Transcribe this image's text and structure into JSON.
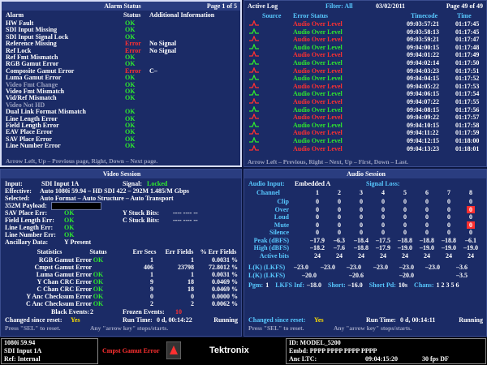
{
  "alarm": {
    "title": "Alarm Status",
    "page": "Page 1 of 5",
    "headers": [
      "Alarm",
      "Status",
      "Additional Information"
    ],
    "rows": [
      {
        "name": "HW Fault",
        "status": "OK",
        "color": "#2ee82e"
      },
      {
        "name": "SDI Input Missing",
        "status": "OK",
        "color": "#2ee82e"
      },
      {
        "name": "SDI Input Signal Lock",
        "status": "OK",
        "color": "#2ee82e"
      },
      {
        "name": "Reference Missing",
        "status": "Error",
        "color": "#ff3030",
        "info": "No Signal"
      },
      {
        "name": "Ref Lock",
        "status": "Error",
        "color": "#ff3030",
        "info": "No Signal"
      },
      {
        "name": "Ref Fmt Mismatch",
        "status": "OK",
        "color": "#2ee82e"
      },
      {
        "name": "RGB Gamut Error",
        "status": "OK",
        "color": "#2ee82e"
      },
      {
        "name": "Composite Gamut Error",
        "status": "Error",
        "color": "#ff3030",
        "info": "C–"
      },
      {
        "name": "Luma Gamut Error",
        "status": "OK",
        "color": "#2ee82e"
      },
      {
        "name": "Video Fmt Change",
        "status": "OK",
        "color": "#2ee82e",
        "dim": true
      },
      {
        "name": "Video Fmt Mismatch",
        "status": "OK",
        "color": "#2ee82e"
      },
      {
        "name": "Vid/Ref Mismatch",
        "status": "OK",
        "color": "#2ee82e"
      },
      {
        "name": "Video Not HD",
        "dim": true
      },
      {
        "name": "Dual Link Format Mismatch",
        "status": "OK",
        "color": "#2ee82e"
      },
      {
        "name": "Line Length Error",
        "status": "OK",
        "color": "#2ee82e"
      },
      {
        "name": "Field Length Error",
        "status": "OK",
        "color": "#2ee82e"
      },
      {
        "name": "EAV Place Error",
        "status": "OK",
        "color": "#2ee82e"
      },
      {
        "name": "SAV Place Error",
        "status": "OK",
        "color": "#2ee82e"
      },
      {
        "name": "Line Number Error",
        "status": "OK",
        "color": "#2ee82e"
      }
    ],
    "footer": "Arrow Left, Up – Previous page, Right, Down – Next page."
  },
  "log": {
    "title": "Active Log",
    "filter": "Filter: All",
    "date": "03/02/2011",
    "page": "Page 49 of 49",
    "headers": [
      "Source",
      "Error Status",
      "Timecode",
      "Time"
    ],
    "rows": [
      {
        "status": "Audio Over Level",
        "timecode": "09:03:57:21",
        "time": "01:17:45",
        "color": "#ff3030"
      },
      {
        "status": "Audio Over Level",
        "timecode": "09:03:58:13",
        "time": "01:17:45",
        "color": "#2ee82e"
      },
      {
        "status": "Audio Over Level",
        "timecode": "09:03:59:21",
        "time": "01:17:47",
        "color": "#ff3030"
      },
      {
        "status": "Audio Over Level",
        "timecode": "09:04:00:15",
        "time": "01:17:48",
        "color": "#2ee82e"
      },
      {
        "status": "Audio Over Level",
        "timecode": "09:04:01:22",
        "time": "01:17:49",
        "color": "#ff3030"
      },
      {
        "status": "Audio Over Level",
        "timecode": "09:04:02:14",
        "time": "01:17:50",
        "color": "#2ee82e"
      },
      {
        "status": "Audio Over Level",
        "timecode": "09:04:03:23",
        "time": "01:17:51",
        "color": "#ff3030"
      },
      {
        "status": "Audio Over Level",
        "timecode": "09:04:04:15",
        "time": "01:17:52",
        "color": "#2ee82e"
      },
      {
        "status": "Audio Over Level",
        "timecode": "09:04:05:22",
        "time": "01:17:53",
        "color": "#ff3030"
      },
      {
        "status": "Audio Over Level",
        "timecode": "09:04:06:15",
        "time": "01:17:54",
        "color": "#2ee82e"
      },
      {
        "status": "Audio Over Level",
        "timecode": "09:04:07:22",
        "time": "01:17:55",
        "color": "#ff3030"
      },
      {
        "status": "Audio Over Level",
        "timecode": "09:04:08:15",
        "time": "01:17:56",
        "color": "#2ee82e"
      },
      {
        "status": "Audio Over Level",
        "timecode": "09:04:09:22",
        "time": "01:17:57",
        "color": "#ff3030"
      },
      {
        "status": "Audio Over Level",
        "timecode": "09:04:10:15",
        "time": "01:17:58",
        "color": "#2ee82e"
      },
      {
        "status": "Audio Over Level",
        "timecode": "09:04:11:22",
        "time": "01:17:59",
        "color": "#ff3030"
      },
      {
        "status": "Audio Over Level",
        "timecode": "09:04:12:15",
        "time": "01:18:00",
        "color": "#2ee82e"
      },
      {
        "status": "Audio Over Level",
        "timecode": "09:04:13:23",
        "time": "01:18:01",
        "color": "#ff3030"
      }
    ],
    "footer": "Arrow Left – Previous, Right – Next, Up – First, Down – Last."
  },
  "video": {
    "title": "Video Session",
    "input": [
      "Input:",
      "SDI Input 1A"
    ],
    "signal": [
      "Signal:",
      "Locked"
    ],
    "effective": [
      "Effective:",
      "Auto 1080i 59.94 – HD SDI 422 – 292M 1.485/M Gbps"
    ],
    "selected": [
      "Selected:",
      "Auto Format – Auto Structure – Auto Transport"
    ],
    "payload": "352M Payload:",
    "checks": [
      [
        "SAV Place Err:",
        "OK"
      ],
      [
        "Field Length Err:",
        "OK"
      ],
      [
        "Line Length Err:",
        "OK"
      ],
      [
        "Line Number Err:",
        "OK"
      ]
    ],
    "stuck": [
      [
        "Y Stuck Bits:",
        "---- ---- --"
      ],
      [
        "C Stuck Bits:",
        "---- ---- --"
      ]
    ],
    "ancillary": [
      "Ancillary Data:",
      "Y Present"
    ],
    "stats_headers": [
      "Statistics",
      "Status",
      "Err Secs",
      "Err Fields",
      "% Err Fields"
    ],
    "stats": [
      {
        "name": "RGB Gamut Error",
        "status": "OK",
        "secs": "1",
        "fields": "1",
        "pct": "0.0031 %"
      },
      {
        "name": "Cmpst Gamut Error",
        "secs": "406",
        "fields": "23798",
        "pct": "72.8012 %"
      },
      {
        "name": "Luma Gamut Error",
        "status": "OK",
        "secs": "1",
        "fields": "1",
        "pct": "0.0031 %"
      },
      {
        "name": "Y Chan CRC Error",
        "status": "OK",
        "secs": "9",
        "fields": "18",
        "pct": "0.0469 %"
      },
      {
        "name": "C Chan CRC Error",
        "status": "OK",
        "secs": "9",
        "fields": "18",
        "pct": "0.0469 %"
      },
      {
        "name": "Y Anc Checksum Error",
        "status": "OK",
        "secs": "0",
        "fields": "0",
        "pct": "0.0000 %"
      },
      {
        "name": "C Anc Checksum Error",
        "status": "OK",
        "secs": "2",
        "fields": "2",
        "pct": "0.0062 %"
      }
    ],
    "black": [
      "Black Events:",
      "2"
    ],
    "frozen": [
      "Frozen Events:",
      "10"
    ],
    "changed": [
      "Changed since reset:",
      "Yes"
    ],
    "runtime": [
      "Run Time:",
      "0 d, 00:14:22"
    ],
    "state": "Running",
    "help": [
      "Press \"SEL\" to reset.",
      "Any \"arrow key\" stops/starts."
    ]
  },
  "audio": {
    "title": "Audio Session",
    "input": [
      "Audio Input:",
      "Embedded A"
    ],
    "signal_loss": "Signal Loss:",
    "channel_label": "Channel",
    "channels": [
      "1",
      "2",
      "3",
      "4",
      "5",
      "6",
      "7",
      "8"
    ],
    "rows": [
      {
        "label": "Clip",
        "values": [
          "0",
          "0",
          "0",
          "0",
          "0",
          "0",
          "0",
          "0"
        ]
      },
      {
        "label": "Over",
        "values": [
          "0",
          "0",
          "0",
          "0",
          "0",
          "0",
          "0",
          "0"
        ],
        "alert": [
          7
        ]
      },
      {
        "label": "Loud",
        "values": [
          "0",
          "0",
          "0",
          "0",
          "0",
          "0",
          "0",
          "0"
        ]
      },
      {
        "label": "Mute",
        "values": [
          "0",
          "0",
          "0",
          "0",
          "0",
          "0",
          "0",
          "0"
        ],
        "alert": [
          7
        ]
      },
      {
        "label": "Silence",
        "values": [
          "0",
          "0",
          "0",
          "0",
          "0",
          "0",
          "0",
          "0"
        ]
      },
      {
        "label": "Peak (dBFS)",
        "values": [
          "–17.9",
          "–6.3",
          "–18.4",
          "–17.5",
          "–18.8",
          "–18.8",
          "–18.8",
          "–6.1"
        ]
      },
      {
        "label": "High (dBFS)",
        "values": [
          "–18.2",
          "–7.6",
          "–18.8",
          "–17.9",
          "–19.0",
          "–19.0",
          "–19.0",
          "–19.0"
        ]
      },
      {
        "label": "Active bits",
        "values": [
          "24",
          "24",
          "24",
          "24",
          "24",
          "24",
          "24",
          "24"
        ]
      }
    ],
    "lk1": {
      "label": "L(K) (LKFS)",
      "values": [
        "–23.0",
        "–23.0",
        "–23.0",
        "–23.0",
        "–23.0",
        "–23.0",
        "–3.6"
      ]
    },
    "lk2": {
      "label": "L(K) (LKFS)",
      "values": [
        "–20.0",
        "–20.6",
        "–20.0",
        "–3.5"
      ]
    },
    "pgm": [
      [
        "Pgm:",
        "1"
      ],
      [
        "LKFS Inf:",
        "–18.0"
      ],
      [
        "Short:",
        "–16.0"
      ],
      [
        "Short Pd:",
        "10s"
      ],
      [
        "Chans:",
        "1 2 3 5 6"
      ]
    ],
    "changed": [
      "Changed since reset:",
      "Yes"
    ],
    "runtime": [
      "Run Time:",
      "0 d, 00:14:11"
    ],
    "state": "Running",
    "help": [
      "Press \"SEL\" to reset.",
      "Any \"arrow key\" stops/starts."
    ]
  },
  "status_bar": {
    "format": "1080i 59.94",
    "input": "SDI Input 1A",
    "ref": "Ref: Internal",
    "error": "Cmpst Gamut Error",
    "brand": "Tektronix",
    "id": "ID: MODEL_5200",
    "embd": "Embd: PPPP PPPP PPPP PPPP",
    "ltc": "Anc LTC:",
    "ltc_time": "09:04:15:20",
    "fps": "30 fps DF"
  }
}
